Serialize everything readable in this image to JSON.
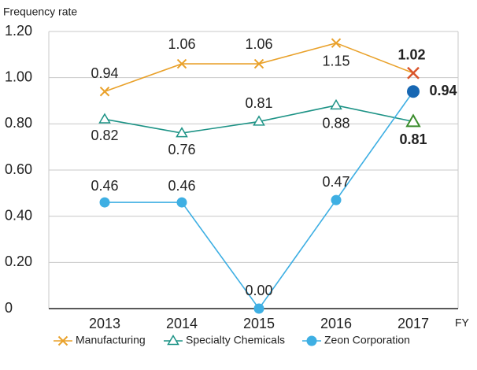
{
  "chart_data": {
    "type": "line",
    "y_label": "Frequency rate",
    "x_label": "FY",
    "categories": [
      "2013",
      "2014",
      "2015",
      "2016",
      "2017"
    ],
    "series": [
      {
        "name": "Manufacturing",
        "color": "#e9a12a",
        "highlight_color": "#d9542b",
        "marker": "x",
        "values": [
          0.94,
          1.06,
          1.06,
          1.15,
          1.02
        ],
        "value_labels": [
          "0.94",
          "1.06",
          "1.06",
          "1.15",
          "1.02"
        ]
      },
      {
        "name": "Specialty Chemicals",
        "color": "#1d9386",
        "highlight_color": "#3a8c2c",
        "marker": "triangle",
        "values": [
          0.82,
          0.76,
          0.81,
          0.88,
          0.81
        ],
        "value_labels": [
          "0.82",
          "0.76",
          "0.81",
          "0.88",
          "0.81"
        ]
      },
      {
        "name": "Zeon Corporation",
        "color": "#3eafe3",
        "highlight_color": "#1767b3",
        "marker": "circle",
        "values": [
          0.46,
          0.46,
          0,
          0.47,
          0.94
        ],
        "value_labels": [
          "0.46",
          "0.46",
          "0.00",
          "0.47",
          "0.94"
        ]
      }
    ],
    "ylim": [
      0,
      1.2
    ],
    "yticks": [
      0,
      {
        "value": 0.2,
        "label": "0.20"
      },
      {
        "value": 0.4,
        "label": "0.40"
      },
      {
        "value": 0.6,
        "label": "0.60"
      },
      {
        "value": 0.8,
        "label": "0.80"
      },
      {
        "value": 1.0,
        "label": "1.00"
      },
      {
        "value": 1.2,
        "label": "1.20"
      }
    ],
    "grid": true,
    "legend": "bottom"
  }
}
